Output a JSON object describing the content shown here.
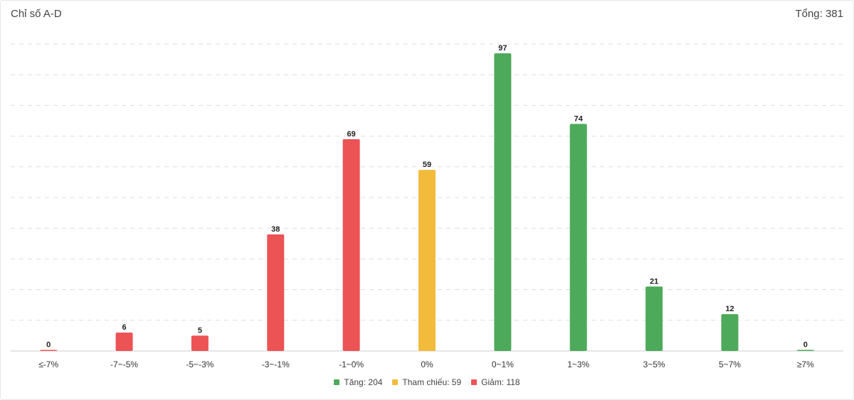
{
  "header": {
    "title": "Chỉ số A-D",
    "total_label": "Tổng: 381"
  },
  "colors": {
    "up": "#4eaa5b",
    "reference": "#f2bb3b",
    "down": "#ec5355",
    "grid": "#dddddd"
  },
  "chart_data": {
    "type": "bar",
    "categories": [
      "≤-7%",
      "-7~-5%",
      "-5~-3%",
      "-3~-1%",
      "-1~0%",
      "0%",
      "0~1%",
      "1~3%",
      "3~5%",
      "5~7%",
      "≥7%"
    ],
    "values": [
      0,
      6,
      5,
      38,
      69,
      59,
      97,
      74,
      21,
      12,
      0
    ],
    "groups": [
      "down",
      "down",
      "down",
      "down",
      "down",
      "reference",
      "up",
      "up",
      "up",
      "up",
      "up"
    ],
    "title": "Chỉ số A-D",
    "ylim": [
      0,
      100
    ],
    "grid": true,
    "legend_position": "bottom"
  },
  "legend": [
    {
      "key": "up",
      "label": "Tăng: 204"
    },
    {
      "key": "reference",
      "label": "Tham chiếu: 59"
    },
    {
      "key": "down",
      "label": "Giảm: 118"
    }
  ]
}
